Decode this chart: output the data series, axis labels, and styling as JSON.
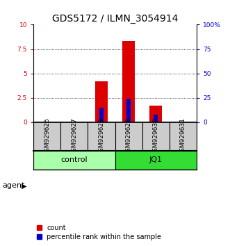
{
  "title": "GDS5172 / ILMN_3054914",
  "samples": [
    "GSM929626",
    "GSM929627",
    "GSM929629",
    "GSM929628",
    "GSM929630",
    "GSM929631"
  ],
  "count_values": [
    0.0,
    0.0,
    4.2,
    8.3,
    1.7,
    0.0
  ],
  "percentile_values": [
    0.0,
    0.0,
    15.0,
    24.0,
    8.0,
    0.0
  ],
  "group_labels": [
    "control",
    "JQ1"
  ],
  "group_colors": [
    "#aaffaa",
    "#33dd33"
  ],
  "bar_color_red": "#dd0000",
  "bar_color_blue": "#0000cc",
  "ylim_left": [
    0,
    10
  ],
  "ylim_right": [
    0,
    100
  ],
  "yticks_left": [
    0,
    2.5,
    5.0,
    7.5,
    10
  ],
  "yticks_right": [
    0,
    25,
    50,
    75,
    100
  ],
  "yticklabels_left": [
    "0",
    "2.5",
    "5",
    "7.5",
    "10"
  ],
  "yticklabels_right": [
    "0",
    "25",
    "50",
    "75",
    "100%"
  ],
  "grid_lines": [
    2.5,
    5.0,
    7.5
  ],
  "bar_width": 0.45,
  "blue_bar_width": 0.15,
  "bg_samples": "#cccccc",
  "title_fontsize": 10,
  "tick_fontsize": 6.5,
  "sample_fontsize": 6.5,
  "group_fontsize": 8,
  "legend_fontsize": 7,
  "agent_label": "agent"
}
